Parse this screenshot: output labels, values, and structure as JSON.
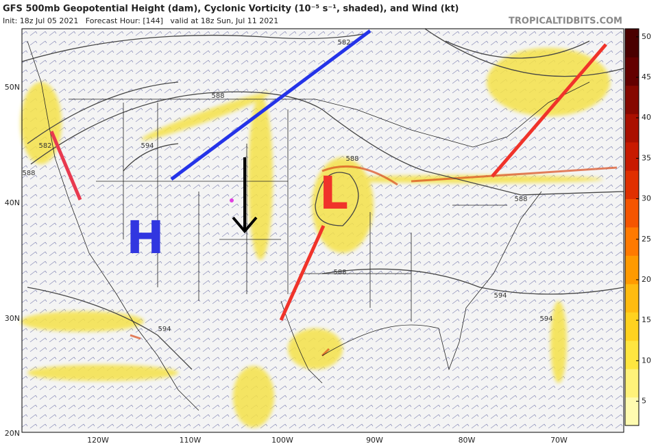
{
  "header": {
    "title": "GFS 500mb Geopotential Height (dam), Cyclonic Vorticity (10⁻⁵ s⁻¹, shaded), and Wind (kt)",
    "subtitle": "Init: 18z Jul 05 2021   Forecast Hour: [144]   valid at 18z Sun, Jul 11 2021",
    "source": "TROPICALTIDBITS.COM"
  },
  "map": {
    "lat_labels": [
      "50N",
      "40N",
      "30N",
      "20N"
    ],
    "lon_labels": [
      "120W",
      "110W",
      "100W",
      "90W",
      "80W",
      "70W"
    ],
    "contour_labels": [
      "582",
      "588",
      "594",
      "582",
      "588",
      "588",
      "588",
      "588",
      "594",
      "594",
      "594"
    ],
    "annotations": {
      "high": "H",
      "low": "L"
    }
  },
  "colorbar": {
    "ticks": [
      5,
      10,
      15,
      20,
      25,
      30,
      35,
      40,
      45,
      50
    ],
    "range": [
      2,
      51
    ]
  }
}
